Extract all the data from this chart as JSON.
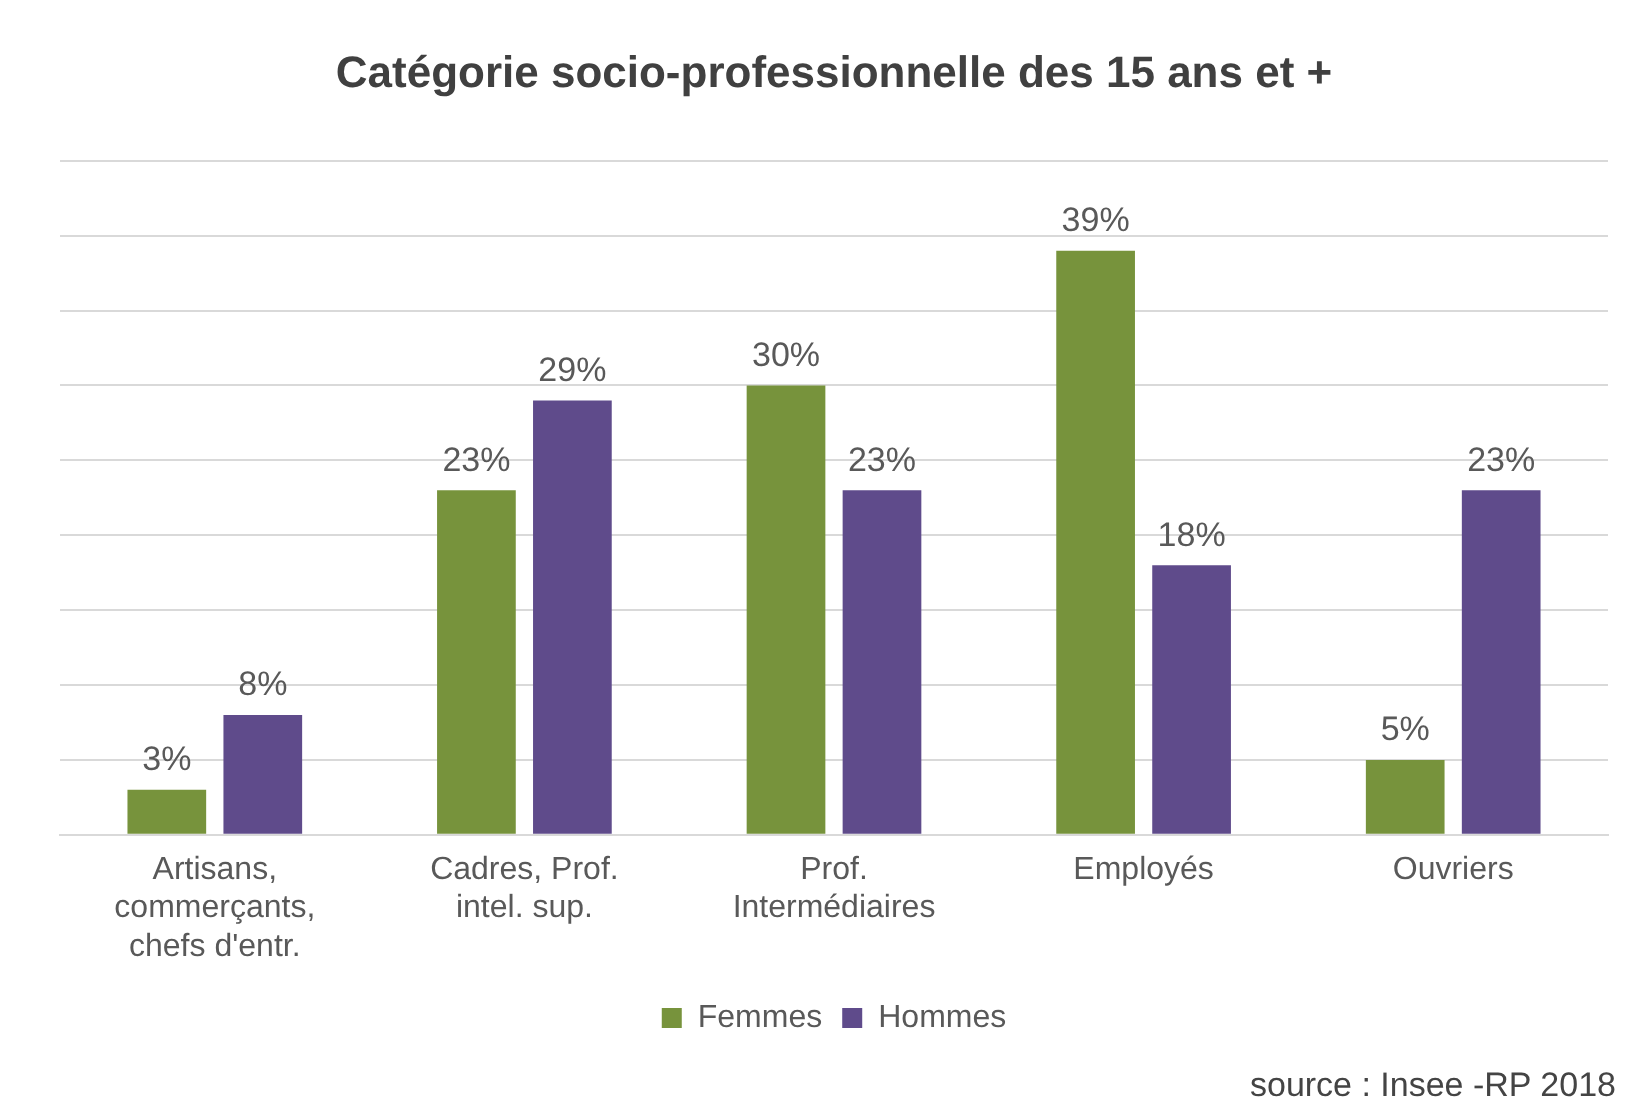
{
  "chart_data": {
    "type": "bar",
    "title": "Catégorie socio-professionnelle des 15 ans et +",
    "categories": [
      "Artisans, commerçants, chefs d'entr.",
      "Cadres, Prof. intel. sup.",
      "Prof. Intermédiaires",
      "Employés",
      "Ouvriers"
    ],
    "series": [
      {
        "name": "Femmes",
        "color": "#77933c",
        "values": [
          3,
          23,
          30,
          39,
          5
        ],
        "value_labels": [
          "3%",
          "23%",
          "30%",
          "39%",
          "5%"
        ]
      },
      {
        "name": "Hommes",
        "color": "#5f4b8b",
        "values": [
          8,
          29,
          23,
          18,
          23
        ],
        "value_labels": [
          "8%",
          "29%",
          "23%",
          "18%",
          "23%"
        ]
      }
    ],
    "ylim": [
      0,
      45
    ],
    "yticks": [
      {
        "value": 0,
        "label": null
      },
      {
        "value": 5,
        "label": null
      },
      {
        "value": 10,
        "label": null
      },
      {
        "value": 15,
        "label": null
      },
      {
        "value": 20,
        "label": null
      },
      {
        "value": 25,
        "label": null
      },
      {
        "value": 30,
        "label": null
      },
      {
        "value": 35,
        "label": null
      },
      {
        "value": 40,
        "label": null
      },
      {
        "value": 45,
        "label": null
      }
    ],
    "grid": "y",
    "tick_labels": "x",
    "legend": "bottom",
    "annotations": [
      "source : Insee -RP 2018"
    ]
  }
}
